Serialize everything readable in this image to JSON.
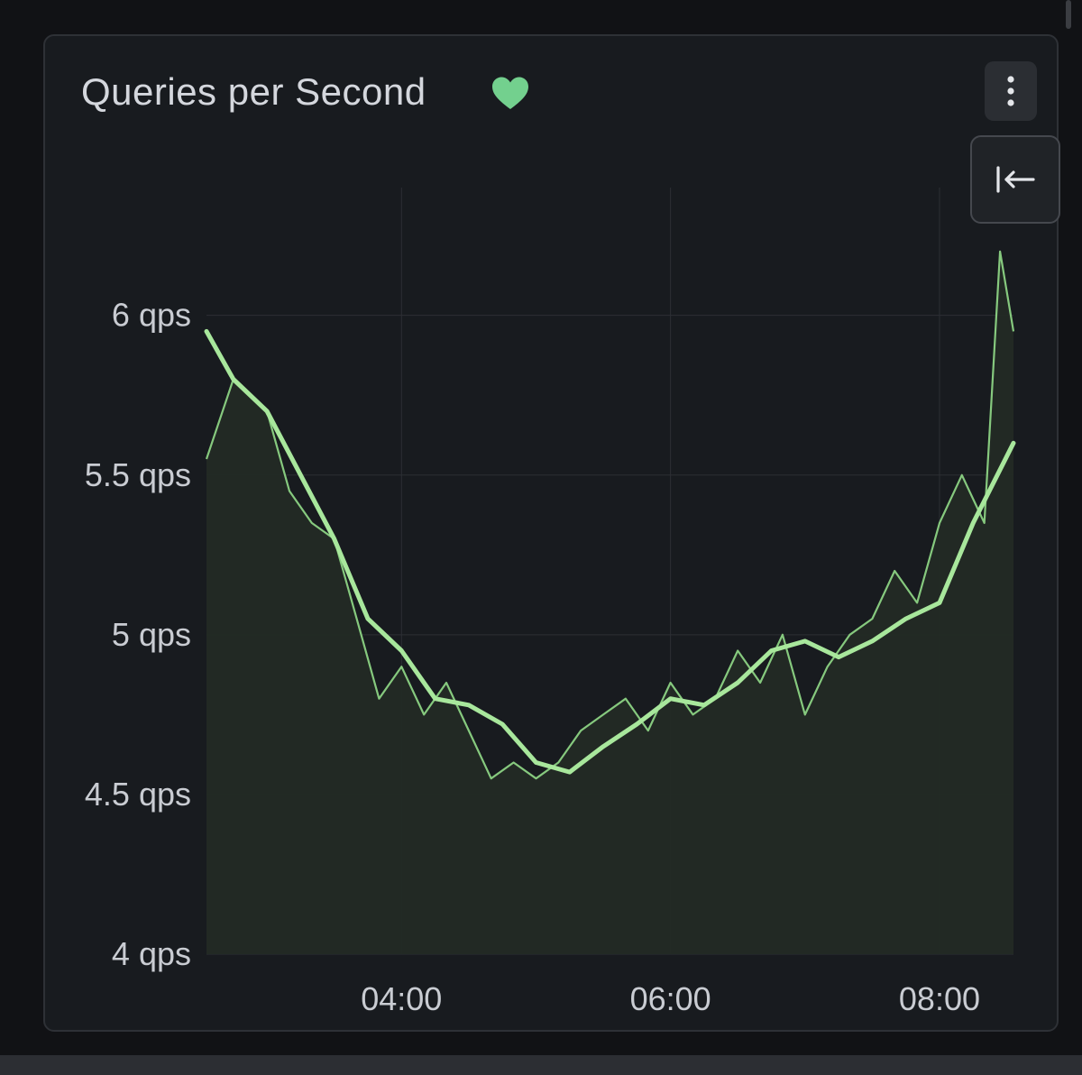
{
  "panel": {
    "title": "Queries per Second",
    "status_icon": "heart-icon",
    "status_color": "#73d08e",
    "menu_icon": "kebab-menu-icon",
    "collapse_icon": "arrow-left-to-bar-icon"
  },
  "colors": {
    "background": "#111215",
    "panel": "#181b1f",
    "raw_series": "#86c97e",
    "smoothed_series": "#a8e79c",
    "area_fill": "#232a25",
    "grid": "#2c2f34",
    "axis_text": "#c9ccd2"
  },
  "chart_data": {
    "type": "line",
    "title": "Queries per Second",
    "xlabel": "",
    "ylabel": "",
    "x_axis": {
      "type": "time",
      "range": [
        "02:33",
        "08:33"
      ],
      "ticks": [
        "04:00",
        "06:00",
        "08:00"
      ]
    },
    "y_axis": {
      "unit": "qps",
      "ylim": [
        4,
        6.4
      ],
      "ticks": [
        "4 qps",
        "4.5 qps",
        "5 qps",
        "5.5 qps",
        "6 qps"
      ],
      "tick_values": [
        4,
        4.5,
        5,
        5.5,
        6
      ]
    },
    "grid": true,
    "legend": "none",
    "series": [
      {
        "style": "thin",
        "x": [
          "02:33",
          "02:45",
          "03:00",
          "03:10",
          "03:20",
          "03:30",
          "03:40",
          "03:50",
          "04:00",
          "04:10",
          "04:20",
          "04:30",
          "04:40",
          "04:50",
          "05:00",
          "05:10",
          "05:20",
          "05:30",
          "05:40",
          "05:50",
          "06:00",
          "06:10",
          "06:20",
          "06:30",
          "06:40",
          "06:50",
          "07:00",
          "07:10",
          "07:20",
          "07:30",
          "07:40",
          "07:50",
          "08:00",
          "08:10",
          "08:20",
          "08:27",
          "08:33"
        ],
        "values": [
          5.55,
          5.8,
          5.7,
          5.45,
          5.35,
          5.3,
          5.05,
          4.8,
          4.9,
          4.75,
          4.85,
          4.7,
          4.55,
          4.6,
          4.55,
          4.6,
          4.7,
          4.75,
          4.8,
          4.7,
          4.85,
          4.75,
          4.8,
          4.95,
          4.85,
          5.0,
          4.75,
          4.9,
          5.0,
          5.05,
          5.2,
          5.1,
          5.35,
          5.5,
          5.35,
          6.2,
          5.95
        ]
      },
      {
        "style": "thick-smoothed",
        "x": [
          "02:33",
          "02:45",
          "03:00",
          "03:15",
          "03:30",
          "03:45",
          "04:00",
          "04:15",
          "04:30",
          "04:45",
          "05:00",
          "05:15",
          "05:30",
          "05:45",
          "06:00",
          "06:15",
          "06:30",
          "06:45",
          "07:00",
          "07:15",
          "07:30",
          "07:45",
          "08:00",
          "08:15",
          "08:33"
        ],
        "values": [
          5.95,
          5.8,
          5.7,
          5.5,
          5.3,
          5.05,
          4.95,
          4.8,
          4.78,
          4.72,
          4.6,
          4.57,
          4.65,
          4.72,
          4.8,
          4.78,
          4.85,
          4.95,
          4.98,
          4.93,
          4.98,
          5.05,
          5.1,
          5.35,
          5.6
        ]
      }
    ]
  }
}
